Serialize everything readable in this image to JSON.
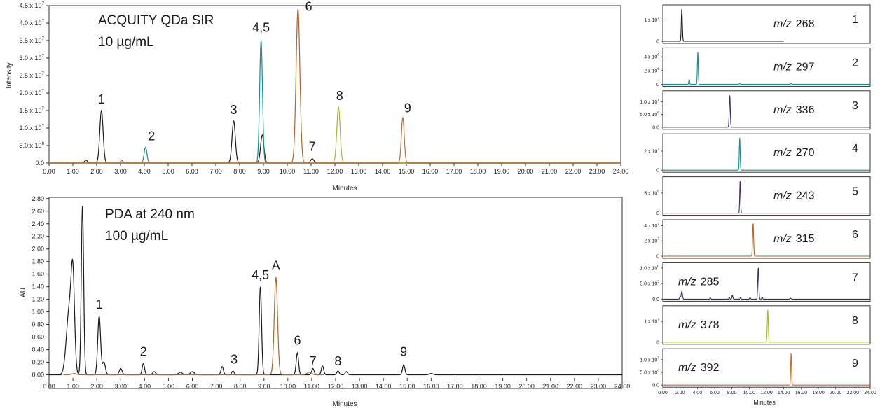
{
  "colors": {
    "black": "#1a1a1a",
    "teal": "#1a8a96",
    "brown": "#b0652a",
    "navy": "#3a2b5e",
    "olive": "#a8b43a",
    "orange": "#c06a38",
    "purple": "#4a2a6a"
  },
  "chart_data": [
    {
      "id": "sir",
      "type": "line",
      "title": "ACQUITY QDa SIR",
      "subtitle": "10 µg/mL",
      "xlabel": "Minutes",
      "ylabel": "Intensity",
      "xlim": [
        0,
        24
      ],
      "ylim": [
        0,
        45000000
      ],
      "grid": false,
      "xticks": [
        "0.00",
        "1.00",
        "2.00",
        "3.00",
        "4.00",
        "5.00",
        "6.00",
        "7.00",
        "8.00",
        "9.00",
        "10.00",
        "11.00",
        "12.00",
        "13.00",
        "14.00",
        "15.00",
        "16.00",
        "17.00",
        "18.00",
        "19.00",
        "20.00",
        "21.00",
        "22.00",
        "23.00",
        "24.00"
      ],
      "yticks": [
        {
          "value": 0,
          "label": "0.0"
        },
        {
          "value": 5000000,
          "label": "5.0 x 10",
          "exp": "6"
        },
        {
          "value": 10000000,
          "label": "1.0 x 10",
          "exp": "7"
        },
        {
          "value": 15000000,
          "label": "1.5 x 10",
          "exp": "7"
        },
        {
          "value": 20000000,
          "label": "2.0 x 10",
          "exp": "7"
        },
        {
          "value": 25000000,
          "label": "2.5 x 10",
          "exp": "7"
        },
        {
          "value": 30000000,
          "label": "3.0 x 10",
          "exp": "7"
        },
        {
          "value": 35000000,
          "label": "3.5 x 10",
          "exp": "7"
        },
        {
          "value": 40000000,
          "label": "4.0 x 10",
          "exp": "7"
        },
        {
          "value": 45000000,
          "label": "4.5 x 10",
          "exp": "7"
        }
      ],
      "series": [
        {
          "color": "#1a1a1a",
          "peaks": [
            {
              "x": 1.55,
              "h": 800000,
              "w": 0.06
            },
            {
              "x": 2.2,
              "h": 15000000,
              "w": 0.07
            },
            {
              "x": 7.75,
              "h": 12000000,
              "w": 0.07
            },
            {
              "x": 8.95,
              "h": 8000000,
              "w": 0.07
            },
            {
              "x": 11.05,
              "h": 1200000,
              "w": 0.07
            }
          ]
        },
        {
          "color": "#1a8a96",
          "peaks": [
            {
              "x": 3.05,
              "h": 800000,
              "w": 0.05
            },
            {
              "x": 4.05,
              "h": 4500000,
              "w": 0.06
            },
            {
              "x": 8.9,
              "h": 35000000,
              "w": 0.06
            }
          ]
        },
        {
          "color": "#b0652a",
          "peaks": [
            {
              "x": 10.45,
              "h": 44000000,
              "w": 0.08
            }
          ]
        },
        {
          "color": "#a8b43a",
          "peaks": [
            {
              "x": 12.15,
              "h": 16000000,
              "w": 0.07
            }
          ]
        },
        {
          "color": "#c06a38",
          "peaks": [
            {
              "x": 14.85,
              "h": 13000000,
              "w": 0.06
            }
          ]
        }
      ],
      "peak_labels": [
        {
          "text": "1",
          "x": 2.2,
          "y": 17000000
        },
        {
          "text": "2",
          "x": 4.3,
          "y": 6500000
        },
        {
          "text": "3",
          "x": 7.75,
          "y": 14000000
        },
        {
          "text": "4,5",
          "x": 8.9,
          "y": 37500000
        },
        {
          "text": "6",
          "x": 10.9,
          "y": 43500000
        },
        {
          "text": "7",
          "x": 11.05,
          "y": 3500000
        },
        {
          "text": "8",
          "x": 12.2,
          "y": 18000000
        },
        {
          "text": "9",
          "x": 15.05,
          "y": 14500000
        }
      ]
    },
    {
      "id": "pda",
      "type": "line",
      "title": "PDA at 240 nm",
      "subtitle": "100 µg/mL",
      "xlabel": "Minutes",
      "ylabel": "AU",
      "xlim": [
        0,
        24
      ],
      "ylim": [
        -0.05,
        2.82
      ],
      "grid": false,
      "xticks": [
        "0.00",
        "1.00",
        "2.00",
        "3.00",
        "4.00",
        "5.00",
        "6.00",
        "7.00",
        "8.00",
        "9.00",
        "10.00",
        "11.00",
        "12.00",
        "13.00",
        "14.00",
        "15.00",
        "16.00",
        "17.00",
        "18.00",
        "19.00",
        "20.00",
        "21.00",
        "22.00",
        "23.00",
        "24.00"
      ],
      "yticks": [
        "0.00",
        "0.20",
        "0.40",
        "0.60",
        "0.80",
        "1.00",
        "1.20",
        "1.40",
        "1.60",
        "1.80",
        "2.00",
        "2.20",
        "2.40",
        "2.60",
        "2.80"
      ],
      "series": [
        {
          "color": "#1a1a1a",
          "peaks": [
            {
              "x": 0.85,
              "h": 1.05,
              "w": 0.12
            },
            {
              "x": 1.0,
              "h": 1.3,
              "w": 0.07
            },
            {
              "x": 1.4,
              "h": 2.68,
              "w": 0.05
            },
            {
              "x": 2.1,
              "h": 0.93,
              "w": 0.06
            },
            {
              "x": 2.3,
              "h": 0.2,
              "w": 0.06
            },
            {
              "x": 3.0,
              "h": 0.1,
              "w": 0.06
            },
            {
              "x": 3.95,
              "h": 0.18,
              "w": 0.05
            },
            {
              "x": 4.4,
              "h": 0.05,
              "w": 0.06
            },
            {
              "x": 5.5,
              "h": 0.04,
              "w": 0.08
            },
            {
              "x": 6.0,
              "h": 0.05,
              "w": 0.08
            },
            {
              "x": 7.25,
              "h": 0.13,
              "w": 0.05
            },
            {
              "x": 7.7,
              "h": 0.06,
              "w": 0.05
            },
            {
              "x": 8.85,
              "h": 1.4,
              "w": 0.05
            },
            {
              "x": 10.4,
              "h": 0.35,
              "w": 0.05
            },
            {
              "x": 11.05,
              "h": 0.1,
              "w": 0.05
            },
            {
              "x": 11.45,
              "h": 0.14,
              "w": 0.05
            },
            {
              "x": 12.1,
              "h": 0.06,
              "w": 0.05
            },
            {
              "x": 12.45,
              "h": 0.05,
              "w": 0.05
            },
            {
              "x": 14.85,
              "h": 0.16,
              "w": 0.05
            },
            {
              "x": 16.0,
              "h": 0.02,
              "w": 0.08
            }
          ]
        },
        {
          "color": "#b0652a",
          "peaks": [
            {
              "x": 9.5,
              "h": 1.55,
              "w": 0.07
            },
            {
              "x": 1.05,
              "h": 0.02,
              "w": 0.1
            },
            {
              "x": 10.9,
              "h": 0.04,
              "w": 0.1
            }
          ]
        }
      ],
      "peak_labels": [
        {
          "text": "1",
          "x": 2.1,
          "y": 1.05
        },
        {
          "text": "2",
          "x": 3.95,
          "y": 0.3
        },
        {
          "text": "3",
          "x": 7.75,
          "y": 0.18
        },
        {
          "text": "4,5",
          "x": 8.85,
          "y": 1.52
        },
        {
          "text": "A",
          "x": 9.5,
          "y": 1.67,
          "color": "#1a8a96"
        },
        {
          "text": "6",
          "x": 10.4,
          "y": 0.48
        },
        {
          "text": "7",
          "x": 11.05,
          "y": 0.15
        },
        {
          "text": "8",
          "x": 12.1,
          "y": 0.15
        },
        {
          "text": "9",
          "x": 14.85,
          "y": 0.3
        }
      ]
    }
  ],
  "traces": [
    {
      "index": "1",
      "mz": "268",
      "color": "#1a1a1a",
      "ymax": 16000000,
      "yticks": [
        {
          "v": 0,
          "t": "0"
        },
        {
          "v": 10000000,
          "t": "1 x 10",
          "e": "7"
        }
      ],
      "peaks": [
        {
          "x": 2.2,
          "h": 15000000,
          "w": 0.06
        }
      ],
      "x_end": 14.0
    },
    {
      "index": "2",
      "mz": "297",
      "color": "#1a8a96",
      "ymax": 5000000,
      "yticks": [
        {
          "v": 0,
          "t": "0"
        },
        {
          "v": 2000000,
          "t": "2 x 10",
          "e": "6"
        },
        {
          "v": 4000000,
          "t": "4 x 10",
          "e": "6"
        }
      ],
      "peaks": [
        {
          "x": 3.05,
          "h": 700000,
          "w": 0.05
        },
        {
          "x": 4.05,
          "h": 4700000,
          "w": 0.05
        },
        {
          "x": 8.9,
          "h": 150000,
          "w": 0.05
        },
        {
          "x": 14.85,
          "h": 150000,
          "w": 0.05
        }
      ],
      "x_end": 24
    },
    {
      "index": "3",
      "mz": "336",
      "color": "#3a2b5e",
      "ymax": 13500000,
      "yticks": [
        {
          "v": 0,
          "t": "0.0"
        },
        {
          "v": 5000000,
          "t": "5.0 x 10",
          "e": "6"
        },
        {
          "v": 10000000,
          "t": "1.0 x 10",
          "e": "7"
        }
      ],
      "peaks": [
        {
          "x": 7.75,
          "h": 12500000,
          "w": 0.06
        }
      ],
      "x_end": 24
    },
    {
      "index": "4",
      "mz": "270",
      "color": "#1a8a96",
      "ymax": 36000000,
      "yticks": [
        {
          "v": 0,
          "t": "0"
        },
        {
          "v": 20000000,
          "t": "2 x 10",
          "e": "7"
        }
      ],
      "peaks": [
        {
          "x": 8.9,
          "h": 34000000,
          "w": 0.05
        }
      ],
      "x_end": 24
    },
    {
      "index": "5",
      "mz": "243",
      "color": "#4a2a6a",
      "ymax": 8500000,
      "yticks": [
        {
          "v": 0,
          "t": "0"
        },
        {
          "v": 5000000,
          "t": "5 x 10",
          "e": "6"
        }
      ],
      "peaks": [
        {
          "x": 8.95,
          "h": 8000000,
          "w": 0.05
        }
      ],
      "x_end": 24
    },
    {
      "index": "6",
      "mz": "315",
      "color": "#b0652a",
      "ymax": 45000000,
      "yticks": [
        {
          "v": 0,
          "t": "0"
        },
        {
          "v": 20000000,
          "t": "2 x 10",
          "e": "7"
        },
        {
          "v": 40000000,
          "t": "4 x 10",
          "e": "7"
        }
      ],
      "peaks": [
        {
          "x": 10.45,
          "h": 43000000,
          "w": 0.06
        }
      ],
      "x_end": 24
    },
    {
      "index": "7",
      "mz": "285",
      "color": "#3a2b5e",
      "ymax": 1100000,
      "yticks": [
        {
          "v": 0,
          "t": "0.0"
        },
        {
          "v": 500000,
          "t": "5.0 x 10",
          "e": "5"
        },
        {
          "v": 1000000,
          "t": "1.0 x 10",
          "e": "6"
        }
      ],
      "peaks": [
        {
          "x": 2.2,
          "h": 250000,
          "w": 0.07
        },
        {
          "x": 2.0,
          "h": 80000,
          "w": 0.05
        },
        {
          "x": 5.5,
          "h": 40000,
          "w": 0.05
        },
        {
          "x": 7.7,
          "h": 60000,
          "w": 0.05
        },
        {
          "x": 8.05,
          "h": 130000,
          "w": 0.05
        },
        {
          "x": 9.0,
          "h": 60000,
          "w": 0.05
        },
        {
          "x": 10.1,
          "h": 50000,
          "w": 0.05
        },
        {
          "x": 11.05,
          "h": 1000000,
          "w": 0.06
        },
        {
          "x": 11.5,
          "h": 70000,
          "w": 0.05
        },
        {
          "x": 14.8,
          "h": 30000,
          "w": 0.05
        }
      ],
      "x_end": 24
    },
    {
      "index": "8",
      "mz": "378",
      "color": "#a8b43a",
      "ymax": 16500000,
      "yticks": [
        {
          "v": 0,
          "t": "0"
        },
        {
          "v": 10000000,
          "t": "1 x 10",
          "e": "7"
        }
      ],
      "peaks": [
        {
          "x": 12.15,
          "h": 15500000,
          "w": 0.06
        }
      ],
      "x_end": 24
    },
    {
      "index": "9",
      "mz": "392",
      "color": "#c06a38",
      "ymax": 13500000,
      "yticks": [
        {
          "v": 0,
          "t": "0.0"
        },
        {
          "v": 5000000,
          "t": "5.0 x 10",
          "e": "6"
        },
        {
          "v": 10000000,
          "t": "1.0 x 10",
          "e": "7"
        }
      ],
      "peaks": [
        {
          "x": 14.85,
          "h": 12500000,
          "w": 0.05
        }
      ],
      "x_end": 24
    }
  ],
  "small_axis": {
    "xticks": [
      "0.00",
      "2.00",
      "4.00",
      "6.00",
      "8.00",
      "10.00",
      "12.00",
      "14.00",
      "16.00",
      "18.00",
      "20.00",
      "22.00",
      "24.00"
    ],
    "xlabel": "Minutes",
    "mz_prefix": "m/z"
  }
}
